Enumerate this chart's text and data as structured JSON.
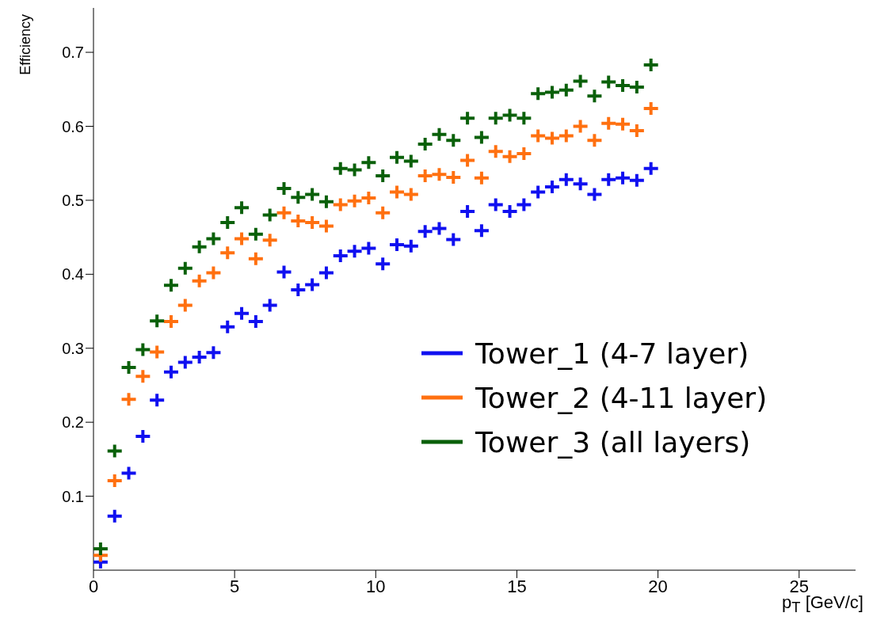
{
  "chart_data": {
    "type": "scatter",
    "xlabel": "p$_{T}$ [GeV/c]",
    "ylabel": "Efficiency",
    "marker": "cross",
    "legend": "right",
    "grid": false,
    "xlim": [
      0,
      27
    ],
    "xticks": [
      0,
      5,
      10,
      15,
      20,
      25
    ],
    "ylim": [
      0,
      0.76
    ],
    "yticks": [
      0.1,
      0.2,
      0.3,
      0.4,
      0.5,
      0.6,
      0.7
    ],
    "x": [
      0.25,
      0.75,
      1.25,
      1.75,
      2.25,
      2.75,
      3.25,
      3.75,
      4.25,
      4.75,
      5.25,
      5.75,
      6.25,
      6.75,
      7.25,
      7.75,
      8.25,
      8.75,
      9.25,
      9.75,
      10.25,
      10.75,
      11.25,
      11.75,
      12.25,
      12.75,
      13.25,
      13.75,
      14.25,
      14.75,
      15.25,
      15.75,
      16.25,
      16.75,
      17.25,
      17.75,
      18.25,
      18.75,
      19.25,
      19.75
    ],
    "series": [
      {
        "name": "Tower_1 (4-7 layer)",
        "color": "#1010f0",
        "values": [
          0.011,
          0.073,
          0.131,
          0.181,
          0.23,
          0.268,
          0.281,
          0.288,
          0.294,
          0.329,
          0.347,
          0.336,
          0.358,
          0.403,
          0.379,
          0.386,
          0.402,
          0.425,
          0.431,
          0.435,
          0.414,
          0.44,
          0.438,
          0.458,
          0.462,
          0.447,
          0.485,
          0.459,
          0.494,
          0.485,
          0.494,
          0.511,
          0.518,
          0.528,
          0.522,
          0.508,
          0.528,
          0.53,
          0.527,
          0.543
        ]
      },
      {
        "name": "Tower_2 (4-11 layer)",
        "color": "#ff7010",
        "values": [
          0.02,
          0.121,
          0.231,
          0.262,
          0.295,
          0.336,
          0.358,
          0.391,
          0.402,
          0.429,
          0.448,
          0.421,
          0.446,
          0.483,
          0.472,
          0.47,
          0.465,
          0.494,
          0.499,
          0.503,
          0.483,
          0.511,
          0.508,
          0.533,
          0.535,
          0.531,
          0.554,
          0.53,
          0.566,
          0.559,
          0.563,
          0.587,
          0.584,
          0.587,
          0.6,
          0.581,
          0.604,
          0.603,
          0.594,
          0.624
        ]
      },
      {
        "name": "Tower_3 (all layers)",
        "color": "#0a600a",
        "values": [
          0.029,
          0.161,
          0.274,
          0.298,
          0.337,
          0.385,
          0.408,
          0.437,
          0.448,
          0.47,
          0.49,
          0.454,
          0.48,
          0.516,
          0.504,
          0.508,
          0.498,
          0.543,
          0.541,
          0.551,
          0.533,
          0.558,
          0.553,
          0.576,
          0.589,
          0.581,
          0.611,
          0.585,
          0.611,
          0.615,
          0.611,
          0.644,
          0.646,
          0.649,
          0.661,
          0.641,
          0.66,
          0.655,
          0.653,
          0.683
        ]
      }
    ]
  }
}
